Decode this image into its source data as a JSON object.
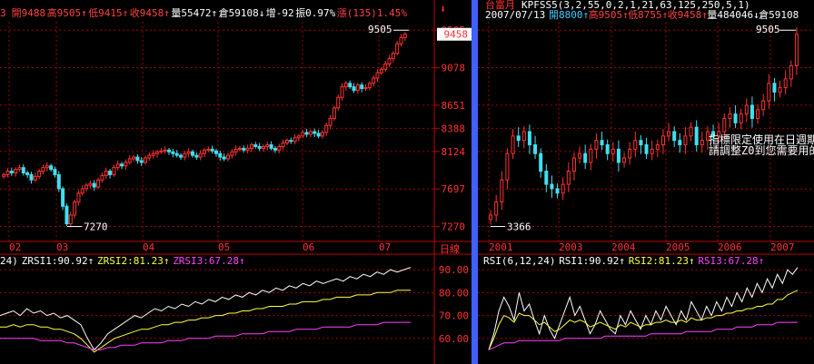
{
  "left_header": {
    "items": [
      {
        "text": "3",
        "color": "#ff4040"
      },
      {
        "text": "開9488",
        "color": "#ff4040"
      },
      {
        "text": "高9505↑",
        "color": "#ff4040"
      },
      {
        "text": "低9415↑",
        "color": "#ff4040"
      },
      {
        "text": "收9458↑",
        "color": "#ff4040"
      },
      {
        "text": "量55472↑",
        "color": "#ffffff"
      },
      {
        "text": "倉59108↓",
        "color": "#ffffff"
      },
      {
        "text": "增-92",
        "color": "#ffffff"
      },
      {
        "text": "振0.97%",
        "color": "#ffffff"
      },
      {
        "text": "漲(135)1.45%",
        "color": "#ff4040"
      }
    ]
  },
  "right_header": {
    "title": "台富月",
    "params": "KPFSS5(3,2,55,0,2,1,21,63,125,250,5,1)",
    "items": [
      {
        "text": "2007/07/13",
        "color": "#ffffff"
      },
      {
        "text": "開8800↑",
        "color": "#40c8ff"
      },
      {
        "text": "高9505↑",
        "color": "#ff4040"
      },
      {
        "text": "低8755↑",
        "color": "#ff4040"
      },
      {
        "text": "收9458↑",
        "color": "#ff4040"
      },
      {
        "text": "量484046↓",
        "color": "#ffffff"
      },
      {
        "text": "倉59108",
        "color": "#ffffff"
      }
    ]
  },
  "price_axis": {
    "ticks": [
      "9505",
      "9078",
      "8651",
      "8388",
      "8124",
      "7697",
      "7270"
    ],
    "current": "9458",
    "bottom_label": "日線"
  },
  "rsi_axis": {
    "ticks": [
      "90.00",
      "80.00",
      "70.00",
      "60.00"
    ]
  },
  "left_rsi_legend": [
    {
      "text": "24)",
      "color": "#ffffff"
    },
    {
      "text": "ZRSI1:90.92↑",
      "color": "#ffffff"
    },
    {
      "text": "ZRSI2:81.23↑",
      "color": "#ffff40"
    },
    {
      "text": "ZRSI3:67.28↑",
      "color": "#ff40ff"
    }
  ],
  "right_rsi_legend": [
    {
      "text": "RSI(6,12,24)",
      "color": "#ffffff"
    },
    {
      "text": "RSI1:90.92↑",
      "color": "#ffffff"
    },
    {
      "text": "RSI2:81.23↑",
      "color": "#ffff40"
    },
    {
      "text": "RSI3:67.28↑",
      "color": "#ff40ff"
    }
  ],
  "notice": [
    "指標限定使用在日週期",
    "請調整Z0到您需要用的"
  ],
  "colors": {
    "up": "#ff3030",
    "down": "#40e0f0",
    "grid": "#a00000",
    "divider": "#4060ff",
    "rsi1": "#ffffff",
    "rsi2": "#ffff40",
    "rsi3": "#ff40ff"
  },
  "chart_data": [
    {
      "type": "candlestick",
      "title": "",
      "x_tick_labels": [
        "02",
        "03",
        "04",
        "05",
        "06",
        "07"
      ],
      "ylim": [
        7100,
        9600
      ],
      "annotations": [
        {
          "label": "9505",
          "type": "high"
        },
        {
          "label": "7270",
          "type": "low"
        }
      ],
      "close": [
        7860,
        7900,
        7880,
        7920,
        7940,
        7880,
        7860,
        7800,
        7840,
        7900,
        7940,
        7960,
        7920,
        7860,
        7700,
        7500,
        7300,
        7400,
        7550,
        7650,
        7700,
        7740,
        7760,
        7720,
        7800,
        7850,
        7900,
        7860,
        7940,
        7980,
        7960,
        8000,
        8040,
        8060,
        8020,
        8000,
        8050,
        8080,
        8100,
        8120,
        8130,
        8140,
        8120,
        8100,
        8080,
        8060,
        8100,
        8120,
        8080,
        8060,
        8100,
        8140,
        8150,
        8130,
        8100,
        8060,
        8040,
        8080,
        8120,
        8150,
        8160,
        8140,
        8160,
        8200,
        8180,
        8160,
        8180,
        8200,
        8160,
        8140,
        8180,
        8220,
        8250,
        8240,
        8280,
        8300,
        8340,
        8320,
        8350,
        8330,
        8300,
        8340,
        8420,
        8500,
        8620,
        8740,
        8860,
        8900,
        8860,
        8820,
        8880,
        8840,
        8850,
        8900,
        8960,
        9020,
        9060,
        9120,
        9180,
        9240,
        9350,
        9420,
        9458
      ]
    },
    {
      "type": "candlestick",
      "title": "台富月",
      "x_tick_labels": [
        "2001",
        "2003",
        "2004",
        "2005",
        "2006",
        "2007"
      ],
      "ylim": [
        7100,
        9600
      ],
      "annotations": [
        {
          "label": "9505",
          "type": "high"
        },
        {
          "label": "3366",
          "type": "low"
        }
      ]
    },
    {
      "type": "line",
      "title": "",
      "ylim": [
        50,
        96
      ],
      "series": [
        {
          "name": "ZRSI1",
          "values": [
            70,
            71,
            72,
            70,
            73,
            71,
            72,
            70,
            71,
            69,
            70,
            68,
            66,
            60,
            55,
            58,
            62,
            64,
            66,
            68,
            70,
            69,
            71,
            73,
            72,
            74,
            73,
            75,
            74,
            76,
            75,
            77,
            76,
            78,
            77,
            79,
            78,
            80,
            79,
            81,
            80,
            82,
            81,
            83,
            82,
            84,
            83,
            85,
            84,
            85,
            86,
            85,
            87,
            86,
            88,
            87,
            89,
            88,
            90,
            89,
            90,
            91
          ]
        },
        {
          "name": "ZRSI2",
          "values": [
            65,
            65,
            66,
            65,
            66,
            66,
            65,
            65,
            64,
            64,
            63,
            62,
            60,
            57,
            54,
            56,
            58,
            60,
            61,
            62,
            63,
            64,
            64,
            65,
            66,
            66,
            67,
            67,
            68,
            68,
            69,
            69,
            70,
            70,
            71,
            71,
            72,
            72,
            73,
            73,
            74,
            74,
            74,
            75,
            75,
            76,
            76,
            76,
            77,
            77,
            78,
            78,
            78,
            79,
            79,
            79,
            80,
            80,
            80,
            81,
            81,
            81
          ]
        },
        {
          "name": "ZRSI3",
          "values": [
            60,
            60,
            60,
            60,
            60,
            60,
            59,
            59,
            59,
            59,
            58,
            58,
            57,
            56,
            55,
            55,
            56,
            56,
            57,
            57,
            57,
            58,
            58,
            58,
            58,
            59,
            59,
            59,
            60,
            60,
            60,
            60,
            61,
            61,
            61,
            61,
            62,
            62,
            62,
            62,
            63,
            63,
            63,
            63,
            64,
            64,
            64,
            64,
            65,
            65,
            65,
            65,
            65,
            66,
            66,
            66,
            66,
            67,
            67,
            67,
            67,
            67
          ]
        }
      ]
    },
    {
      "type": "line",
      "title": "RSI(6,12,24)",
      "ylim": [
        50,
        96
      ],
      "series": [
        {
          "name": "RSI1",
          "values": [
            55,
            62,
            72,
            78,
            74,
            68,
            80,
            72,
            75,
            68,
            62,
            70,
            64,
            60,
            66,
            72,
            78,
            70,
            74,
            68,
            62,
            66,
            72,
            68,
            64,
            62,
            70,
            66,
            72,
            68,
            64,
            70,
            66,
            72,
            68,
            74,
            70,
            66,
            72,
            68,
            76,
            72,
            68,
            74,
            70,
            76,
            72,
            78,
            74,
            80,
            76,
            82,
            78,
            84,
            80,
            86,
            82,
            88,
            84,
            90,
            88,
            91
          ]
        },
        {
          "name": "RSI2",
          "values": [
            55,
            60,
            66,
            70,
            69,
            67,
            71,
            70,
            70,
            68,
            66,
            67,
            65,
            63,
            64,
            66,
            68,
            67,
            68,
            67,
            65,
            66,
            67,
            66,
            65,
            64,
            66,
            65,
            67,
            66,
            65,
            66,
            66,
            67,
            67,
            68,
            67,
            67,
            68,
            67,
            69,
            68,
            68,
            69,
            69,
            70,
            70,
            71,
            71,
            72,
            72,
            73,
            73,
            74,
            74,
            75,
            75,
            77,
            77,
            79,
            80,
            81
          ]
        },
        {
          "name": "RSI3",
          "values": [
            55,
            56,
            57,
            58,
            58,
            58,
            59,
            59,
            59,
            59,
            59,
            59,
            59,
            59,
            59,
            60,
            60,
            60,
            60,
            60,
            60,
            60,
            60,
            61,
            61,
            61,
            61,
            61,
            61,
            61,
            61,
            61,
            62,
            62,
            62,
            62,
            62,
            62,
            62,
            63,
            63,
            63,
            63,
            63,
            63,
            64,
            64,
            64,
            64,
            65,
            65,
            65,
            65,
            66,
            66,
            66,
            66,
            67,
            67,
            67,
            67,
            67
          ]
        }
      ]
    }
  ]
}
